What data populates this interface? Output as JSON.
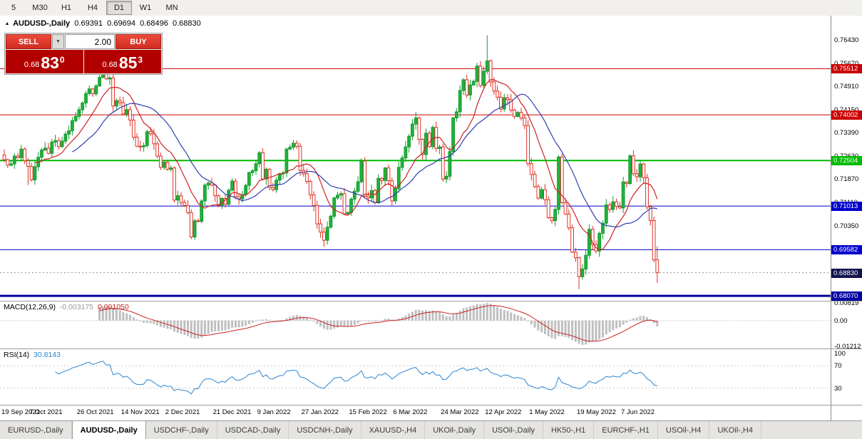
{
  "toolbar": {
    "timeframes": [
      {
        "label": "5",
        "active": false
      },
      {
        "label": "M30",
        "active": false
      },
      {
        "label": "H1",
        "active": false
      },
      {
        "label": "H4",
        "active": false
      },
      {
        "label": "D1",
        "active": true
      },
      {
        "label": "W1",
        "active": false
      },
      {
        "label": "MN",
        "active": false
      }
    ]
  },
  "symbol_header": {
    "icon": "▴",
    "name": "AUDUSD-,Daily",
    "open": "0.69391",
    "high": "0.69694",
    "low": "0.68496",
    "close": "0.68830"
  },
  "trade_panel": {
    "sell_label": "SELL",
    "buy_label": "BUY",
    "volume": "2.00",
    "dropdown_icon": "▼",
    "sell_price": {
      "prefix": "0.68",
      "big": "83",
      "sup": "0"
    },
    "buy_price": {
      "prefix": "0.68",
      "big": "85",
      "sup": "3"
    }
  },
  "main_chart": {
    "price_max": 0.7725,
    "price_min": 0.6791,
    "y_ticks": [
      0.7643,
      0.7567,
      0.7491,
      0.7415,
      0.7339,
      0.7263,
      0.7187,
      0.7111,
      0.7035
    ],
    "x_labels": [
      "19 Sep 2021",
      "7 Oct 2021",
      "26 Oct 2021",
      "14 Nov 2021",
      "2 Dec 2021",
      "21 Dec 2021",
      "9 Jan 2022",
      "27 Jan 2022",
      "15 Feb 2022",
      "6 Mar 2022",
      "24 Mar 2022",
      "12 Apr 2022",
      "1 May 2022",
      "19 May 2022",
      "7 Jun 2022"
    ],
    "levels": [
      {
        "value": 0.75512,
        "label": "0.75512",
        "color": "#cc0000",
        "line_width": 1
      },
      {
        "value": 0.74002,
        "label": "0.74002",
        "color": "#cc0000",
        "line_width": 1
      },
      {
        "value": 0.72504,
        "label": "0.72504",
        "color": "#00bb00",
        "line_width": 2
      },
      {
        "value": 0.71013,
        "label": "0.71013",
        "color": "#0000cc",
        "line_width": 1
      },
      {
        "value": 0.69582,
        "label": "0.69582",
        "color": "#0000cc",
        "line_width": 1
      },
      {
        "value": 0.6807,
        "label": "0.68070",
        "color": "#0000a0",
        "line_width": 3
      }
    ],
    "current_price": {
      "value": 0.6883,
      "label": "0.68830",
      "color": "#12124e"
    }
  },
  "macd": {
    "title": "MACD(12,26,9)",
    "main_value": "-0.003175",
    "signal_value": "0.001050",
    "range": {
      "min": -0.0131,
      "max": 0.009
    },
    "axis_labels": [
      {
        "text": "0.00819",
        "value": 0.00819
      },
      {
        "text": "0.00",
        "value": 0
      },
      {
        "text": "-0.01212",
        "value": -0.01212
      }
    ],
    "params": {
      "fast": 12,
      "slow": 26,
      "signal": 9
    }
  },
  "rsi": {
    "title": "RSI(14)",
    "value": "30.8143",
    "period": 14,
    "levels": [
      70,
      30
    ],
    "axis_labels": [
      {
        "text": "100",
        "value": 100
      },
      {
        "text": "70",
        "value": 70
      },
      {
        "text": "30",
        "value": 30
      }
    ]
  },
  "tabs": {
    "active_index": 1,
    "items": [
      "EURUSD-,Daily",
      "AUDUSD-,Daily",
      "USDCHF-,Daily",
      "USDCAD-,Daily",
      "USDCNH-,Daily",
      "XAUUSD-,H4",
      "UKOil-,Daily",
      "USOil-,Daily",
      "HK50-,H1",
      "EURCHF-,H1",
      "USOil-,H4",
      "UKOil-,H4"
    ]
  },
  "colors": {
    "up": "#149a2e",
    "up_fill": "#1fb33b",
    "down": "#e03224",
    "down_fill": "#ffffff",
    "ma_fast": "#cc2222",
    "ma_slow": "#2f3fb0",
    "macd_hist": "#bfbfbf",
    "macd_signal": "#cc2222",
    "rsi_line": "#2a86d2",
    "grid": "#b8b8b8"
  },
  "chart_data": {
    "type": "candlestick",
    "symbol": "AUDUSD",
    "timeframe": "Daily",
    "overlays": [
      {
        "name": "MA fast",
        "period": 10,
        "color": "#cc2222"
      },
      {
        "name": "MA slow",
        "period": 21,
        "color": "#2f3fb0"
      }
    ],
    "closes": [
      0.7253,
      0.7235,
      0.7239,
      0.7265,
      0.726,
      0.7288,
      0.725,
      0.7231,
      0.7187,
      0.723,
      0.7261,
      0.7285,
      0.7291,
      0.7274,
      0.7311,
      0.7316,
      0.7296,
      0.7314,
      0.7337,
      0.7348,
      0.7381,
      0.7395,
      0.7417,
      0.7439,
      0.747,
      0.7485,
      0.7469,
      0.7495,
      0.7523,
      0.7546,
      0.7518,
      0.7521,
      0.7429,
      0.7447,
      0.744,
      0.7403,
      0.7417,
      0.7383,
      0.7327,
      0.7297,
      0.7295,
      0.7299,
      0.7345,
      0.7338,
      0.7305,
      0.7265,
      0.7228,
      0.7245,
      0.7222,
      0.7226,
      0.7121,
      0.7135,
      0.7113,
      0.7103,
      0.708,
      0.7,
      0.7053,
      0.7051,
      0.7118,
      0.717,
      0.7177,
      0.717,
      0.7135,
      0.7104,
      0.7126,
      0.7107,
      0.7153,
      0.7183,
      0.7132,
      0.7125,
      0.7139,
      0.7169,
      0.7211,
      0.7217,
      0.724,
      0.7276,
      0.719,
      0.7222,
      0.7162,
      0.7155,
      0.7186,
      0.7207,
      0.721,
      0.7288,
      0.7294,
      0.7307,
      0.7297,
      0.7218,
      0.7207,
      0.7182,
      0.7138,
      0.7103,
      0.7043,
      0.7016,
      0.6989,
      0.7032,
      0.7068,
      0.7128,
      0.7137,
      0.7142,
      0.7076,
      0.708,
      0.7124,
      0.715,
      0.7181,
      0.7249,
      0.7134,
      0.7128,
      0.7152,
      0.7112,
      0.7192,
      0.7185,
      0.7226,
      0.7184,
      0.7118,
      0.7158,
      0.7228,
      0.7259,
      0.7295,
      0.733,
      0.737,
      0.739,
      0.732,
      0.727,
      0.734,
      0.7296,
      0.7359,
      0.729,
      0.7295,
      0.719,
      0.7199,
      0.728,
      0.739,
      0.741,
      0.748,
      0.7515,
      0.7465,
      0.7498,
      0.751,
      0.756,
      0.7496,
      0.7543,
      0.7577,
      0.7508,
      0.7478,
      0.7458,
      0.7419,
      0.7456,
      0.745,
      0.7416,
      0.7395,
      0.7408,
      0.739,
      0.7365,
      0.724,
      0.7205,
      0.7165,
      0.7127,
      0.7155,
      0.7122,
      0.7063,
      0.7053,
      0.709,
      0.7262,
      0.7112,
      0.7075,
      0.703,
      0.695,
      0.6932,
      0.687,
      0.6895,
      0.694,
      0.7025,
      0.6975,
      0.6954,
      0.7012,
      0.7045,
      0.7105,
      0.709,
      0.7115,
      0.71,
      0.7095,
      0.718,
      0.7175,
      0.7266,
      0.7207,
      0.7197,
      0.7239,
      0.7194,
      0.7099,
      0.7054,
      0.6925,
      0.6883
    ],
    "wicks": {
      "7": {
        "low": 0.717
      },
      "29": {
        "high": 0.7556
      },
      "55": {
        "low": 0.6993
      },
      "94": {
        "low": 0.6968
      },
      "142": {
        "high": 0.7661
      },
      "169": {
        "low": 0.6829
      },
      "192": {
        "high": 0.69694,
        "low": 0.68496
      }
    }
  }
}
